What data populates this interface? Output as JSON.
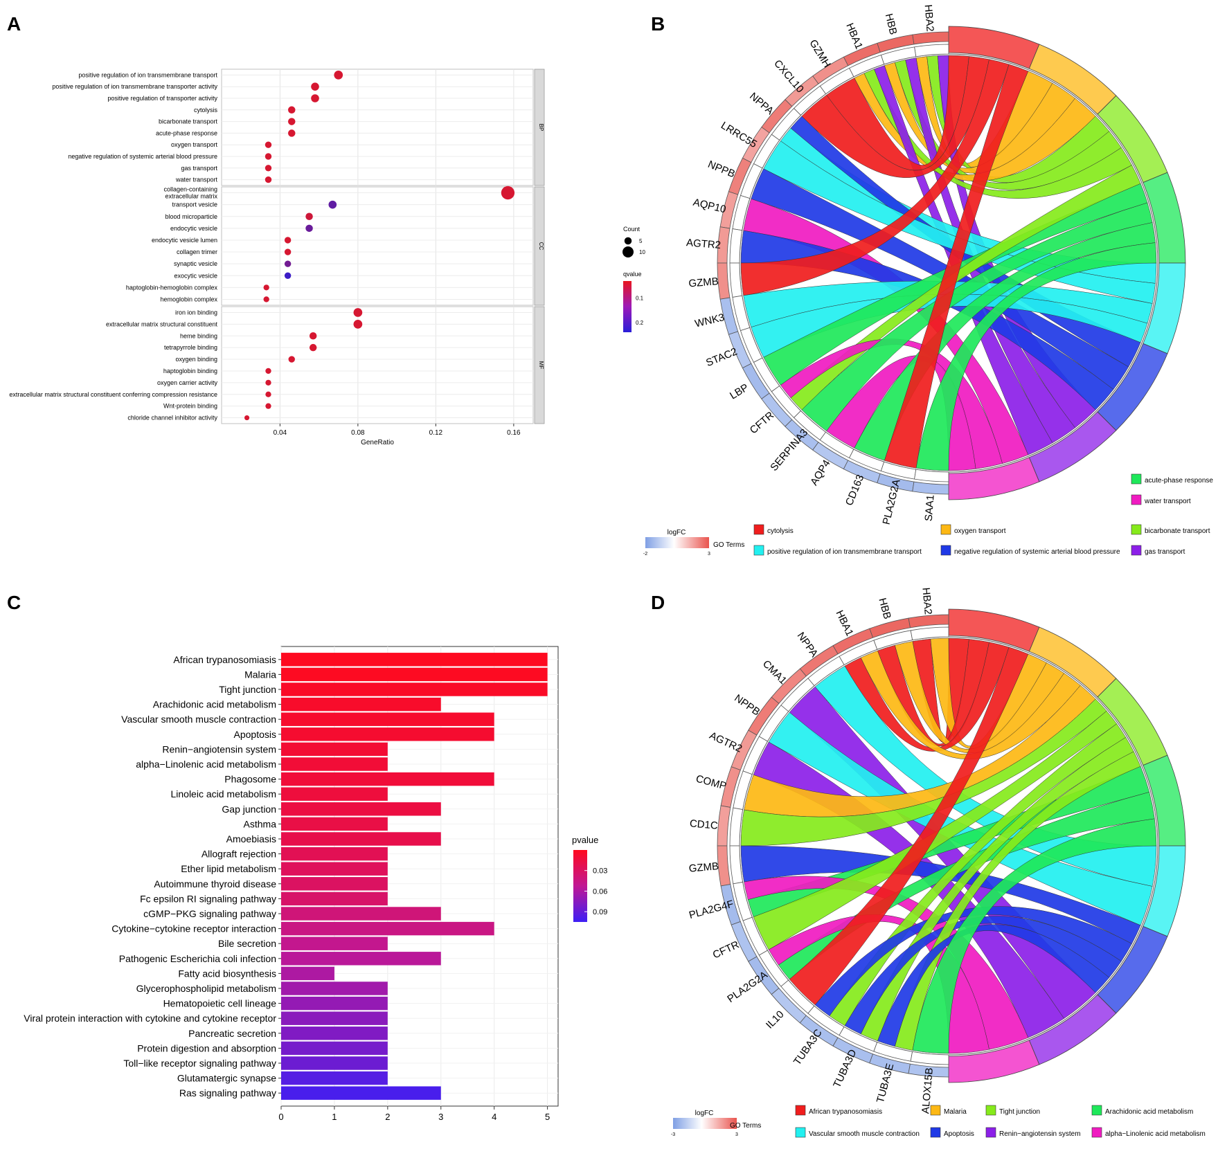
{
  "panels": {
    "A": "A",
    "B": "B",
    "C": "C",
    "D": "D"
  },
  "chart_data": [
    {
      "id": "A",
      "type": "scatter",
      "title": "",
      "xlabel": "GeneRatio",
      "ylabel": "",
      "xlim": [
        0.01,
        0.17
      ],
      "xticks": [
        0.04,
        0.08,
        0.12,
        0.16
      ],
      "xtick_labels": [
        "0.04",
        "0.08",
        "0.12",
        "0.16"
      ],
      "facets": [
        {
          "name": "BP",
          "terms": [
            {
              "label": "positive regulation of ion transmembrane transport",
              "x": 0.07,
              "count": 7,
              "qvalue": 0.05
            },
            {
              "label": "positive regulation of ion transmembrane transporter activity",
              "x": 0.058,
              "count": 6,
              "qvalue": 0.05
            },
            {
              "label": "positive regulation of transporter activity",
              "x": 0.058,
              "count": 6,
              "qvalue": 0.05
            },
            {
              "label": "cytolysis",
              "x": 0.046,
              "count": 5,
              "qvalue": 0.05
            },
            {
              "label": "bicarbonate transport",
              "x": 0.046,
              "count": 5,
              "qvalue": 0.05
            },
            {
              "label": "acute-phase response",
              "x": 0.046,
              "count": 5,
              "qvalue": 0.05
            },
            {
              "label": "oxygen transport",
              "x": 0.034,
              "count": 4,
              "qvalue": 0.05
            },
            {
              "label": "negative regulation of systemic arterial blood pressure",
              "x": 0.034,
              "count": 4,
              "qvalue": 0.05
            },
            {
              "label": "gas transport",
              "x": 0.034,
              "count": 4,
              "qvalue": 0.05
            },
            {
              "label": "water transport",
              "x": 0.034,
              "count": 4,
              "qvalue": 0.05
            }
          ]
        },
        {
          "name": "CC",
          "terms": [
            {
              "label": "collagen-containing\nextracellular matrix",
              "x": 0.157,
              "count": 13,
              "qvalue": 0.05
            },
            {
              "label": "transport vesicle",
              "x": 0.067,
              "count": 6,
              "qvalue": 0.18
            },
            {
              "label": "blood microparticle",
              "x": 0.055,
              "count": 5,
              "qvalue": 0.06
            },
            {
              "label": "endocytic vesicle",
              "x": 0.055,
              "count": 5,
              "qvalue": 0.17
            },
            {
              "label": "endocytic vesicle lumen",
              "x": 0.044,
              "count": 4,
              "qvalue": 0.05
            },
            {
              "label": "collagen trimer",
              "x": 0.044,
              "count": 4,
              "qvalue": 0.05
            },
            {
              "label": "synaptic vesicle",
              "x": 0.044,
              "count": 4,
              "qvalue": 0.16
            },
            {
              "label": "exocytic vesicle",
              "x": 0.044,
              "count": 4,
              "qvalue": 0.22
            },
            {
              "label": "haptoglobin-hemoglobin complex",
              "x": 0.033,
              "count": 3,
              "qvalue": 0.05
            },
            {
              "label": "hemoglobin complex",
              "x": 0.033,
              "count": 3,
              "qvalue": 0.05
            }
          ]
        },
        {
          "name": "MF",
          "terms": [
            {
              "label": "iron ion binding",
              "x": 0.08,
              "count": 7,
              "qvalue": 0.05
            },
            {
              "label": "extracellular matrix structural constituent",
              "x": 0.08,
              "count": 7,
              "qvalue": 0.05
            },
            {
              "label": "heme binding",
              "x": 0.057,
              "count": 5,
              "qvalue": 0.05
            },
            {
              "label": "tetrapyrrole binding",
              "x": 0.057,
              "count": 5,
              "qvalue": 0.05
            },
            {
              "label": "oxygen binding",
              "x": 0.046,
              "count": 4,
              "qvalue": 0.05
            },
            {
              "label": "haptoglobin binding",
              "x": 0.034,
              "count": 3,
              "qvalue": 0.05
            },
            {
              "label": "oxygen carrier activity",
              "x": 0.034,
              "count": 3,
              "qvalue": 0.05
            },
            {
              "label": "extracellular matrix structural constituent conferring compression resistance",
              "x": 0.034,
              "count": 3,
              "qvalue": 0.05
            },
            {
              "label": "Wnt-protein binding",
              "x": 0.034,
              "count": 3,
              "qvalue": 0.05
            },
            {
              "label": "chloride channel inhibitor activity",
              "x": 0.023,
              "count": 2,
              "qvalue": 0.05
            }
          ]
        }
      ],
      "size_legend": {
        "title": "Count",
        "values": [
          5,
          10
        ],
        "labels": [
          "5",
          "10"
        ]
      },
      "color_legend": {
        "title": "qvalue",
        "range": [
          0.03,
          0.24
        ],
        "ticks": [
          0.1,
          0.2
        ],
        "tick_labels": [
          "0.1",
          "0.2"
        ],
        "low_color": "#e8161f",
        "high_color": "#2a1ed8"
      }
    },
    {
      "id": "B",
      "type": "chord",
      "genes": [
        "HBA2",
        "HBB",
        "HBA1",
        "GZMH",
        "CXCL10",
        "NPPA",
        "LRRC55",
        "NPPB",
        "AQP10",
        "AGTR2",
        "GZMB",
        "WNK3",
        "STAC2",
        "LBP",
        "CFTR",
        "SERPINA3",
        "AQP4",
        "CD163",
        "PLA2G2A",
        "SAA1"
      ],
      "gene_logfc": [
        2.6,
        2.6,
        2.5,
        1.8,
        1.6,
        2.2,
        1.4,
        2.1,
        1.5,
        1.6,
        1.8,
        -1.2,
        -1.0,
        -1.3,
        -1.1,
        -1.2,
        -1.0,
        -1.1,
        -1.3,
        -1.2
      ],
      "terms": [
        "cytolysis",
        "oxygen transport",
        "bicarbonate transport",
        "acute-phase response",
        "positive regulation of ion transmembrane transport",
        "negative regulation of systemic arterial blood pressure",
        "gas transport",
        "water transport"
      ],
      "term_colors": [
        "#f01d1d",
        "#fdb814",
        "#86ea1b",
        "#1ee85a",
        "#22f0f0",
        "#1f39e6",
        "#8c1fe8",
        "#f01bc1"
      ],
      "links": [
        {
          "gene": "HBA2",
          "term": "oxygen transport"
        },
        {
          "gene": "HBA2",
          "term": "bicarbonate transport"
        },
        {
          "gene": "HBA2",
          "term": "gas transport"
        },
        {
          "gene": "HBB",
          "term": "oxygen transport"
        },
        {
          "gene": "HBB",
          "term": "bicarbonate transport"
        },
        {
          "gene": "HBB",
          "term": "gas transport"
        },
        {
          "gene": "HBA1",
          "term": "oxygen transport"
        },
        {
          "gene": "HBA1",
          "term": "bicarbonate transport"
        },
        {
          "gene": "HBA1",
          "term": "gas transport"
        },
        {
          "gene": "GZMH",
          "term": "cytolysis"
        },
        {
          "gene": "CXCL10",
          "term": "cytolysis"
        },
        {
          "gene": "NPPA",
          "term": "positive regulation of ion transmembrane transport"
        },
        {
          "gene": "NPPA",
          "term": "negative regulation of systemic arterial blood pressure"
        },
        {
          "gene": "LRRC55",
          "term": "positive regulation of ion transmembrane transport"
        },
        {
          "gene": "NPPB",
          "term": "negative regulation of systemic arterial blood pressure"
        },
        {
          "gene": "AQP10",
          "term": "water transport"
        },
        {
          "gene": "AGTR2",
          "term": "negative regulation of systemic arterial blood pressure"
        },
        {
          "gene": "GZMB",
          "term": "cytolysis"
        },
        {
          "gene": "WNK3",
          "term": "positive regulation of ion transmembrane transport"
        },
        {
          "gene": "STAC2",
          "term": "positive regulation of ion transmembrane transport"
        },
        {
          "gene": "LBP",
          "term": "acute-phase response"
        },
        {
          "gene": "CFTR",
          "term": "bicarbonate transport"
        },
        {
          "gene": "CFTR",
          "term": "water transport"
        },
        {
          "gene": "SERPINA3",
          "term": "acute-phase response"
        },
        {
          "gene": "AQP4",
          "term": "water transport"
        },
        {
          "gene": "CD163",
          "term": "acute-phase response"
        },
        {
          "gene": "PLA2G2A",
          "term": "cytolysis"
        },
        {
          "gene": "SAA1",
          "term": "acute-phase response"
        }
      ],
      "legend": {
        "logfc_title": "logFC",
        "logfc_min": "-2",
        "logfc_max": "3",
        "go_title": "GO Terms"
      }
    },
    {
      "id": "C",
      "type": "bar",
      "orientation": "horizontal",
      "title": "",
      "xlabel": "",
      "ylabel": "",
      "xlim": [
        0,
        5.2
      ],
      "xticks": [
        0,
        1,
        2,
        3,
        4,
        5
      ],
      "xtick_labels": [
        "0",
        "1",
        "2",
        "3",
        "4",
        "5"
      ],
      "categories": [
        "African trypanosomiasis",
        "Malaria",
        "Tight junction",
        "Arachidonic acid metabolism",
        "Vascular smooth muscle contraction",
        "Apoptosis",
        "Renin−angiotensin system",
        "alpha−Linolenic acid metabolism",
        "Phagosome",
        "Linoleic acid metabolism",
        "Gap junction",
        "Asthma",
        "Amoebiasis",
        "Allograft rejection",
        "Ether lipid metabolism",
        "Autoimmune thyroid disease",
        "Fc epsilon RI signaling pathway",
        "cGMP−PKG signaling pathway",
        "Cytokine−cytokine receptor interaction",
        "Bile secretion",
        "Pathogenic Escherichia coli infection",
        "Fatty acid biosynthesis",
        "Glycerophospholipid metabolism",
        "Hematopoietic cell lineage",
        "Viral protein interaction with cytokine and cytokine receptor",
        "Pancreatic secretion",
        "Protein digestion and absorption",
        "Toll−like receptor signaling pathway",
        "Glutamatergic synapse",
        "Ras signaling pathway"
      ],
      "values": [
        5,
        5,
        5,
        3,
        4,
        4,
        2,
        2,
        4,
        2,
        3,
        2,
        3,
        2,
        2,
        2,
        2,
        3,
        4,
        2,
        3,
        1,
        2,
        2,
        2,
        2,
        2,
        2,
        2,
        3
      ],
      "pvalues": [
        0.001,
        0.002,
        0.004,
        0.006,
        0.007,
        0.008,
        0.01,
        0.011,
        0.012,
        0.014,
        0.016,
        0.018,
        0.02,
        0.024,
        0.027,
        0.03,
        0.033,
        0.04,
        0.045,
        0.05,
        0.055,
        0.06,
        0.065,
        0.07,
        0.074,
        0.078,
        0.082,
        0.086,
        0.095,
        0.1
      ],
      "color_legend": {
        "title": "pvalue",
        "range": [
          0.0,
          0.105
        ],
        "ticks": [
          0.03,
          0.06,
          0.09
        ],
        "tick_labels": [
          "0.03",
          "0.06",
          "0.09"
        ],
        "low_color": "#ff0a1e",
        "high_color": "#3d1ff5"
      }
    },
    {
      "id": "D",
      "type": "chord",
      "genes": [
        "HBA2",
        "HBB",
        "HBA1",
        "NPPA",
        "CMA1",
        "NPPB",
        "AGTR2",
        "COMP",
        "CD1C",
        "GZMB",
        "PLA2G4F",
        "CFTR",
        "PLA2G2A",
        "IL10",
        "TUBA3C",
        "TUBA3D",
        "TUBA3E",
        "ALOX15B"
      ],
      "gene_logfc": [
        2.6,
        2.6,
        2.5,
        2.3,
        2.0,
        2.2,
        1.6,
        1.8,
        1.5,
        1.8,
        -1.3,
        -1.1,
        -1.3,
        -1.0,
        -1.2,
        -1.2,
        -1.2,
        -1.1
      ],
      "terms": [
        "African trypanosomiasis",
        "Malaria",
        "Tight junction",
        "Arachidonic acid metabolism",
        "Vascular smooth muscle contraction",
        "Apoptosis",
        "Renin−angiotensin system",
        "alpha−Linolenic acid metabolism"
      ],
      "term_colors": [
        "#f01d1d",
        "#fdb814",
        "#86ea1b",
        "#1ee85a",
        "#22f0f0",
        "#1f39e6",
        "#8c1fe8",
        "#f01bc1"
      ],
      "links": [
        {
          "gene": "HBA2",
          "term": "African trypanosomiasis"
        },
        {
          "gene": "HBA2",
          "term": "Malaria"
        },
        {
          "gene": "HBB",
          "term": "African trypanosomiasis"
        },
        {
          "gene": "HBB",
          "term": "Malaria"
        },
        {
          "gene": "HBA1",
          "term": "African trypanosomiasis"
        },
        {
          "gene": "HBA1",
          "term": "Malaria"
        },
        {
          "gene": "NPPA",
          "term": "Vascular smooth muscle contraction"
        },
        {
          "gene": "CMA1",
          "term": "Renin−angiotensin system"
        },
        {
          "gene": "NPPB",
          "term": "Vascular smooth muscle contraction"
        },
        {
          "gene": "AGTR2",
          "term": "Renin−angiotensin system"
        },
        {
          "gene": "COMP",
          "term": "Malaria"
        },
        {
          "gene": "CD1C",
          "term": "Tight junction"
        },
        {
          "gene": "GZMB",
          "term": "Apoptosis"
        },
        {
          "gene": "PLA2G4F",
          "term": "Arachidonic acid metabolism"
        },
        {
          "gene": "PLA2G4F",
          "term": "alpha−Linolenic acid metabolism"
        },
        {
          "gene": "CFTR",
          "term": "Tight junction"
        },
        {
          "gene": "PLA2G2A",
          "term": "Arachidonic acid metabolism"
        },
        {
          "gene": "PLA2G2A",
          "term": "alpha−Linolenic acid metabolism"
        },
        {
          "gene": "IL10",
          "term": "African trypanosomiasis"
        },
        {
          "gene": "TUBA3C",
          "term": "Tight junction"
        },
        {
          "gene": "TUBA3C",
          "term": "Apoptosis"
        },
        {
          "gene": "TUBA3D",
          "term": "Tight junction"
        },
        {
          "gene": "TUBA3D",
          "term": "Apoptosis"
        },
        {
          "gene": "TUBA3E",
          "term": "Tight junction"
        },
        {
          "gene": "TUBA3E",
          "term": "Apoptosis"
        },
        {
          "gene": "ALOX15B",
          "term": "Arachidonic acid metabolism"
        }
      ],
      "legend": {
        "logfc_title": "logFC",
        "logfc_min": "-3",
        "logfc_max": "3",
        "go_title": "GO Terms"
      }
    }
  ]
}
